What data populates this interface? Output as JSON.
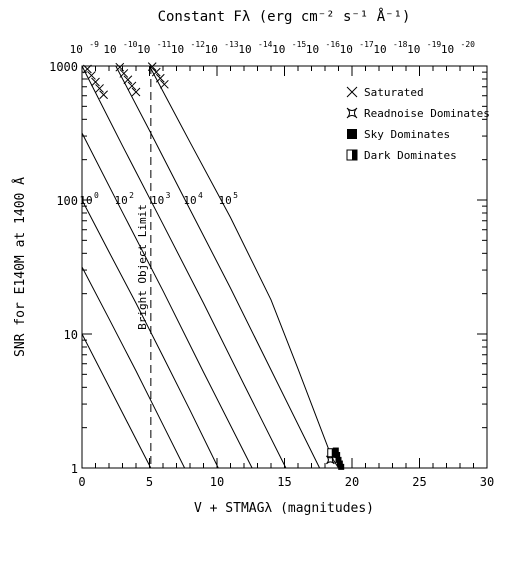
{
  "chart_data": {
    "type": "line",
    "title": "Constant Fλ (erg cm⁻² s⁻¹ Å⁻¹)",
    "xlabel": "V + STMAGλ (magnitudes)",
    "ylabel": "SNR for E140M at 1400 Å",
    "xlim": [
      0,
      30
    ],
    "ylim": [
      1,
      1000
    ],
    "y_scale": "log",
    "x_ticks": [
      0,
      5,
      10,
      15,
      20,
      25,
      30
    ],
    "x_tick_labels": [
      "0",
      "5",
      "10",
      "15",
      "20",
      "25",
      "30"
    ],
    "y_ticks": [
      1,
      10,
      100,
      1000
    ],
    "y_tick_labels": [
      "1",
      "10",
      "100",
      "1000"
    ],
    "top_axis": {
      "mantissa": "10",
      "exponents": [
        "-9",
        "-10",
        "-11",
        "-12",
        "-13",
        "-14",
        "-15",
        "-16",
        "-17",
        "-18",
        "-19",
        "-20"
      ],
      "x": [
        -2.5,
        0,
        2.5,
        5,
        7.5,
        10,
        12.5,
        15,
        17.5,
        20,
        22.5,
        25
      ]
    },
    "bright_object_limit": {
      "x": 5.1,
      "label": "Bright Object Limit"
    },
    "legend": {
      "placement": "top-right",
      "items": [
        {
          "label": "Saturated",
          "marker": "x"
        },
        {
          "label": "Readnoise Dominates",
          "marker": "star"
        },
        {
          "label": "Sky Dominates",
          "marker": "filled-square"
        },
        {
          "label": "Dark Dominates",
          "marker": "half-square"
        }
      ]
    },
    "series": [
      {
        "label_mantissa": "",
        "label_exp": "0",
        "curve_label": "10",
        "x": [
          0,
          5.1
        ],
        "y": [
          10,
          1
        ]
      },
      {
        "label_mantissa": "",
        "label_exp": "",
        "curve_label": "",
        "x": [
          0,
          2,
          4,
          6,
          7.6
        ],
        "y": [
          31.6,
          13,
          5.3,
          2.1,
          1
        ]
      },
      {
        "label_mantissa": "10",
        "label_exp": "2",
        "curve_label": "",
        "x": [
          0,
          2,
          4,
          6,
          8,
          10.1
        ],
        "y": [
          100,
          41,
          17,
          6.8,
          2.7,
          1
        ]
      },
      {
        "label_mantissa": "",
        "label_exp": "",
        "curve_label": "",
        "x": [
          0,
          3,
          6,
          9,
          12.6
        ],
        "y": [
          316,
          81,
          21,
          5.2,
          1
        ]
      },
      {
        "label_mantissa": "10",
        "label_exp": "3",
        "curve_label": "",
        "x": [
          0,
          3,
          6,
          9,
          12,
          15.1
        ],
        "y": [
          1000,
          254,
          66,
          17,
          4.2,
          1
        ]
      },
      {
        "label_mantissa": "10",
        "label_exp": "4",
        "curve_label": "",
        "x": [
          2.5,
          5,
          8,
          11,
          14,
          17.6
        ],
        "y": [
          1000,
          330,
          85,
          22,
          5.4,
          1
        ]
      },
      {
        "label_mantissa": "10",
        "label_exp": "5",
        "curve_label": "",
        "x": [
          5,
          8,
          11,
          14,
          16,
          17.5,
          18.5,
          19
        ],
        "y": [
          1000,
          270,
          74,
          18,
          5.5,
          2.2,
          1.2,
          1
        ]
      }
    ],
    "saturated_points": [
      {
        "x": 0.4,
        "y": 950
      },
      {
        "x": 0.7,
        "y": 850
      },
      {
        "x": 1.0,
        "y": 760
      },
      {
        "x": 1.3,
        "y": 680
      },
      {
        "x": 1.6,
        "y": 610
      },
      {
        "x": 2.8,
        "y": 980
      },
      {
        "x": 3.1,
        "y": 880
      },
      {
        "x": 3.4,
        "y": 790
      },
      {
        "x": 3.7,
        "y": 710
      },
      {
        "x": 4.0,
        "y": 640
      },
      {
        "x": 5.2,
        "y": 990
      },
      {
        "x": 5.5,
        "y": 900
      },
      {
        "x": 5.8,
        "y": 810
      },
      {
        "x": 6.1,
        "y": 730
      }
    ],
    "readnoise_points": [
      {
        "x": 18.4,
        "y": 1.15
      }
    ],
    "sky_points": [
      {
        "x": 18.8,
        "y": 1.35
      },
      {
        "x": 18.9,
        "y": 1.25
      },
      {
        "x": 19.0,
        "y": 1.15
      },
      {
        "x": 19.1,
        "y": 1.08
      },
      {
        "x": 19.2,
        "y": 1.02
      }
    ],
    "dark_points": [
      {
        "x": 18.5,
        "y": 1.3
      }
    ]
  }
}
